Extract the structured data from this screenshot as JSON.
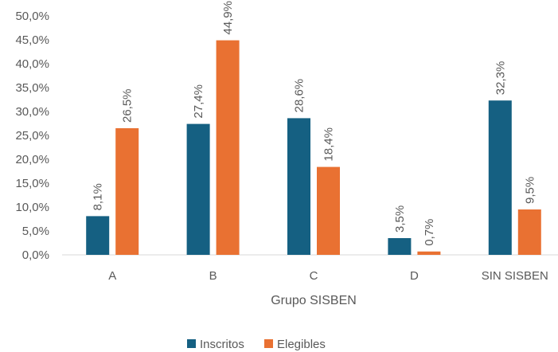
{
  "chart_data": {
    "type": "bar",
    "categories": [
      "A",
      "B",
      "C",
      "D",
      "SIN SISBEN"
    ],
    "series": [
      {
        "name": "Inscritos",
        "color": "#156082",
        "values": [
          8.1,
          27.4,
          28.6,
          3.5,
          32.3
        ],
        "labels": [
          "8,1%",
          "27,4%",
          "28,6%",
          "3,5%",
          "32,3%"
        ]
      },
      {
        "name": "Elegibles",
        "color": "#E97132",
        "values": [
          26.5,
          44.9,
          18.4,
          0.7,
          9.5
        ],
        "labels": [
          "26,5%",
          "44,9%",
          "18,4%",
          "0,7%",
          "9,5%"
        ]
      }
    ],
    "xlabel": "Grupo SISBEN",
    "ylabel": "",
    "ylim": [
      0,
      50
    ],
    "yticks": [
      "0,0%",
      "5,0%",
      "10,0%",
      "15,0%",
      "20,0%",
      "25,0%",
      "30,0%",
      "35,0%",
      "40,0%",
      "45,0%",
      "50,0%"
    ],
    "grid": false,
    "legend": "bottom"
  }
}
